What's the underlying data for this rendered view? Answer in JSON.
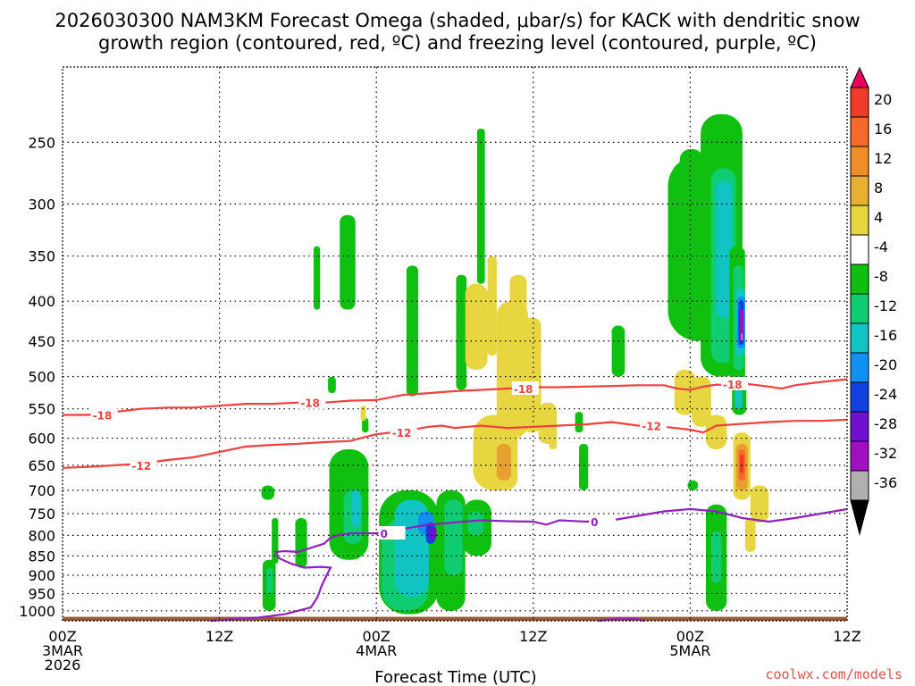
{
  "title_line1": "2026030300 NAM3KM Forecast Omega (shaded, μbar/s) for KACK with dendritic snow",
  "title_line2": "growth region (contoured, red, ºC) and freezing level (contoured, purple, ºC)",
  "credit": "coolwx.com/models",
  "chart_data": {
    "type": "heatmap",
    "title": "2026030300 NAM3KM Forecast Omega (shaded, μbar/s) for KACK with dendritic snow growth region (contoured, red, ºC) and freezing level (contoured, purple, ºC)",
    "xlabel": "Forecast Time (UTC)",
    "ylabel": "",
    "x_ticks": [
      {
        "hour": 0,
        "lines": [
          "00Z",
          "3MAR",
          "2026"
        ]
      },
      {
        "hour": 12,
        "lines": [
          "12Z"
        ]
      },
      {
        "hour": 24,
        "lines": [
          "00Z",
          "4MAR"
        ]
      },
      {
        "hour": 36,
        "lines": [
          "12Z"
        ]
      },
      {
        "hour": 48,
        "lines": [
          "00Z",
          "5MAR"
        ]
      },
      {
        "hour": 60,
        "lines": [
          "12Z"
        ]
      }
    ],
    "xlim": [
      0,
      60
    ],
    "y_ticks": [
      250,
      300,
      350,
      400,
      450,
      500,
      550,
      600,
      650,
      700,
      750,
      800,
      850,
      900,
      950,
      1000
    ],
    "ylim": [
      1030,
      200
    ],
    "grid": true,
    "colorbar": {
      "labels": [
        "20",
        "16",
        "12",
        "8",
        "4",
        "-4",
        "-8",
        "-12",
        "-16",
        "-20",
        "-24",
        "-28",
        "-32",
        "-36"
      ],
      "colors": [
        "#e8005f",
        "#f03a2a",
        "#f56a2a",
        "#ef8f2a",
        "#e8b030",
        "#e8d640",
        "#ffffff",
        "#10c010",
        "#10cc70",
        "#10c4c4",
        "#1090f0",
        "#1040e0",
        "#7010d0",
        "#a010c0",
        "#b0b0b0",
        "#000000"
      ]
    },
    "omega_cells": [
      {
        "t0": 15.2,
        "t1": 16.2,
        "p0": 690,
        "p1": 720,
        "v": -6
      },
      {
        "t0": 15.3,
        "t1": 16.3,
        "p0": 1000,
        "p1": 860,
        "v": -6
      },
      {
        "t0": 15.6,
        "t1": 16.1,
        "p0": 950,
        "p1": 880,
        "v": -10
      },
      {
        "t0": 16.0,
        "t1": 16.5,
        "p0": 870,
        "p1": 760,
        "v": -6
      },
      {
        "t0": 17.8,
        "t1": 18.7,
        "p0": 880,
        "p1": 760,
        "v": -6
      },
      {
        "t0": 19.2,
        "t1": 19.7,
        "p0": 410,
        "p1": 340,
        "v": -6
      },
      {
        "t0": 20.3,
        "t1": 20.9,
        "p0": 525,
        "p1": 500,
        "v": -6
      },
      {
        "t0": 21.2,
        "t1": 22.4,
        "p0": 410,
        "p1": 310,
        "v": -6
      },
      {
        "t0": 20.4,
        "t1": 23.4,
        "p0": 860,
        "p1": 620,
        "v": -6
      },
      {
        "t0": 21.5,
        "t1": 22.9,
        "p0": 820,
        "p1": 700,
        "v": -10
      },
      {
        "t0": 22.1,
        "t1": 22.8,
        "p0": 780,
        "p1": 700,
        "v": -14
      },
      {
        "t0": 22.9,
        "t1": 23.4,
        "p0": 590,
        "p1": 565,
        "v": -6
      },
      {
        "t0": 22.8,
        "t1": 23.2,
        "p0": 570,
        "p1": 545,
        "v": 5
      },
      {
        "t0": 24.2,
        "t1": 28.8,
        "p0": 1010,
        "p1": 700,
        "v": -6
      },
      {
        "t0": 24.4,
        "t1": 28.0,
        "p0": 1000,
        "p1": 760,
        "v": -10
      },
      {
        "t0": 25.4,
        "t1": 28.0,
        "p0": 960,
        "p1": 720,
        "v": -14
      },
      {
        "t0": 27.2,
        "t1": 28.4,
        "p0": 800,
        "p1": 745,
        "v": -18
      },
      {
        "t0": 27.8,
        "t1": 28.5,
        "p0": 820,
        "p1": 770,
        "v": -22
      },
      {
        "t0": 28.0,
        "t1": 28.6,
        "p0": 810,
        "p1": 780,
        "v": -26
      },
      {
        "t0": 28.6,
        "t1": 30.8,
        "p0": 1000,
        "p1": 700,
        "v": -6
      },
      {
        "t0": 29.2,
        "t1": 30.6,
        "p0": 900,
        "p1": 720,
        "v": -10
      },
      {
        "t0": 30.6,
        "t1": 32.8,
        "p0": 850,
        "p1": 720,
        "v": -6
      },
      {
        "t0": 31.0,
        "t1": 32.2,
        "p0": 800,
        "p1": 745,
        "v": -10
      },
      {
        "t0": 26.3,
        "t1": 27.2,
        "p0": 530,
        "p1": 360,
        "v": -6
      },
      {
        "t0": 30.1,
        "t1": 30.9,
        "p0": 520,
        "p1": 370,
        "v": -6
      },
      {
        "t0": 31.7,
        "t1": 32.3,
        "p0": 380,
        "p1": 240,
        "v": -6
      },
      {
        "t0": 30.8,
        "t1": 32.5,
        "p0": 490,
        "p1": 380,
        "v": 5
      },
      {
        "t0": 31.4,
        "t1": 34.8,
        "p0": 700,
        "p1": 560,
        "v": 5
      },
      {
        "t0": 32.5,
        "t1": 33.2,
        "p0": 470,
        "p1": 350,
        "v": 5
      },
      {
        "t0": 33.2,
        "t1": 35.6,
        "p0": 600,
        "p1": 400,
        "v": 5
      },
      {
        "t0": 34.2,
        "t1": 35.5,
        "p0": 530,
        "p1": 370,
        "v": 5
      },
      {
        "t0": 35.2,
        "t1": 36.6,
        "p0": 590,
        "p1": 420,
        "v": 5
      },
      {
        "t0": 36.4,
        "t1": 37.8,
        "p0": 610,
        "p1": 540,
        "v": 5
      },
      {
        "t0": 37.2,
        "t1": 37.8,
        "p0": 620,
        "p1": 555,
        "v": 5
      },
      {
        "t0": 32.8,
        "t1": 34.8,
        "p0": 700,
        "p1": 585,
        "v": 5
      },
      {
        "t0": 33.2,
        "t1": 34.3,
        "p0": 680,
        "p1": 610,
        "v": 9
      },
      {
        "t0": 39.2,
        "t1": 39.8,
        "p0": 590,
        "p1": 555,
        "v": -6
      },
      {
        "t0": 39.5,
        "t1": 40.2,
        "p0": 700,
        "p1": 610,
        "v": -6
      },
      {
        "t0": 42.0,
        "t1": 43.0,
        "p0": 500,
        "p1": 430,
        "v": -6
      },
      {
        "t0": 46.3,
        "t1": 51.4,
        "p0": 450,
        "p1": 260,
        "v": -6
      },
      {
        "t0": 47.2,
        "t1": 49.0,
        "p0": 420,
        "p1": 255,
        "v": -6
      },
      {
        "t0": 48.8,
        "t1": 52.0,
        "p0": 500,
        "p1": 230,
        "v": -6
      },
      {
        "t0": 49.6,
        "t1": 51.5,
        "p0": 480,
        "p1": 270,
        "v": -10
      },
      {
        "t0": 50.0,
        "t1": 51.2,
        "p0": 420,
        "p1": 280,
        "v": -14
      },
      {
        "t0": 51.0,
        "t1": 52.2,
        "p0": 520,
        "p1": 340,
        "v": -6
      },
      {
        "t0": 51.3,
        "t1": 52.1,
        "p0": 490,
        "p1": 360,
        "v": -10
      },
      {
        "t0": 51.5,
        "t1": 52.2,
        "p0": 470,
        "p1": 385,
        "v": -14
      },
      {
        "t0": 51.6,
        "t1": 52.2,
        "p0": 460,
        "p1": 395,
        "v": -18
      },
      {
        "t0": 51.7,
        "t1": 52.1,
        "p0": 455,
        "p1": 400,
        "v": -22
      },
      {
        "t0": 51.8,
        "t1": 52.1,
        "p0": 450,
        "p1": 410,
        "v": -28
      },
      {
        "t0": 51.9,
        "t1": 52.0,
        "p0": 450,
        "p1": 440,
        "v": -36
      },
      {
        "t0": 51.2,
        "t1": 52.3,
        "p0": 560,
        "p1": 510,
        "v": -6
      },
      {
        "t0": 51.4,
        "t1": 52.0,
        "p0": 550,
        "p1": 520,
        "v": -14
      },
      {
        "t0": 46.8,
        "t1": 48.4,
        "p0": 560,
        "p1": 490,
        "v": 5
      },
      {
        "t0": 48.1,
        "t1": 49.6,
        "p0": 580,
        "p1": 500,
        "v": 5
      },
      {
        "t0": 49.2,
        "t1": 50.8,
        "p0": 620,
        "p1": 560,
        "v": 5
      },
      {
        "t0": 51.3,
        "t1": 52.6,
        "p0": 720,
        "p1": 590,
        "v": 5
      },
      {
        "t0": 51.5,
        "t1": 52.4,
        "p0": 700,
        "p1": 610,
        "v": 9
      },
      {
        "t0": 51.7,
        "t1": 52.2,
        "p0": 680,
        "p1": 620,
        "v": 13
      },
      {
        "t0": 51.8,
        "t1": 52.1,
        "p0": 665,
        "p1": 630,
        "v": 17
      },
      {
        "t0": 52.6,
        "t1": 54.0,
        "p0": 770,
        "p1": 690,
        "v": 5
      },
      {
        "t0": 52.2,
        "t1": 53.0,
        "p0": 840,
        "p1": 760,
        "v": 5
      },
      {
        "t0": 47.8,
        "t1": 48.6,
        "p0": 700,
        "p1": 680,
        "v": -6
      },
      {
        "t0": 49.2,
        "t1": 50.8,
        "p0": 1000,
        "p1": 730,
        "v": -6
      },
      {
        "t0": 49.6,
        "t1": 50.4,
        "p0": 920,
        "p1": 790,
        "v": -10
      }
    ],
    "contours": [
      {
        "name": "-18",
        "color": "#f04040",
        "points": [
          [
            0,
            560
          ],
          [
            2,
            560
          ],
          [
            4,
            555
          ],
          [
            6,
            550
          ],
          [
            8,
            548
          ],
          [
            10,
            548
          ],
          [
            12,
            545
          ],
          [
            14,
            542
          ],
          [
            16,
            542
          ],
          [
            18,
            540
          ],
          [
            20,
            540
          ],
          [
            22,
            537
          ],
          [
            24,
            536
          ],
          [
            26,
            528
          ],
          [
            28,
            525
          ],
          [
            30,
            522
          ],
          [
            32,
            520
          ],
          [
            34,
            518
          ],
          [
            36,
            516
          ],
          [
            38,
            516
          ],
          [
            40,
            515
          ],
          [
            42,
            514
          ],
          [
            44,
            513
          ],
          [
            46,
            513
          ],
          [
            47,
            518
          ],
          [
            48,
            520
          ],
          [
            49,
            515
          ],
          [
            50,
            512
          ],
          [
            51,
            513
          ],
          [
            52,
            510
          ],
          [
            54,
            515
          ],
          [
            55,
            518
          ],
          [
            56,
            513
          ],
          [
            58,
            508
          ],
          [
            60,
            504
          ]
        ],
        "labels": [
          [
            2.3,
            560
          ],
          [
            18.2,
            540
          ],
          [
            34.5,
            518
          ],
          [
            50.5,
            511
          ]
        ]
      },
      {
        "name": "-12",
        "color": "#f04040",
        "points": [
          [
            0,
            655
          ],
          [
            2,
            653
          ],
          [
            4,
            650
          ],
          [
            6,
            647
          ],
          [
            8,
            640
          ],
          [
            10,
            635
          ],
          [
            12,
            625
          ],
          [
            14,
            615
          ],
          [
            16,
            612
          ],
          [
            18,
            610
          ],
          [
            20,
            607
          ],
          [
            22,
            605
          ],
          [
            24,
            593
          ],
          [
            26,
            588
          ],
          [
            28,
            580
          ],
          [
            29,
            578
          ],
          [
            30,
            582
          ],
          [
            31,
            580
          ],
          [
            32,
            578
          ],
          [
            34,
            582
          ],
          [
            36,
            580
          ],
          [
            38,
            578
          ],
          [
            40,
            576
          ],
          [
            42,
            572
          ],
          [
            44,
            578
          ],
          [
            46,
            580
          ],
          [
            48,
            585
          ],
          [
            49,
            590
          ],
          [
            50,
            578
          ],
          [
            52,
            575
          ],
          [
            54,
            572
          ],
          [
            56,
            570
          ],
          [
            58,
            570
          ],
          [
            60,
            568
          ]
        ],
        "labels": [
          [
            5.3,
            650
          ],
          [
            25.2,
            590
          ],
          [
            44.3,
            578
          ]
        ]
      },
      {
        "name": "0",
        "color": "#9020c0",
        "points": [
          [
            11.3,
            1030
          ],
          [
            13,
            1025
          ],
          [
            15,
            1020
          ],
          [
            17,
            1010
          ],
          [
            18,
            1000
          ],
          [
            19,
            990
          ],
          [
            19.5,
            960
          ],
          [
            19.8,
            930
          ],
          [
            20.2,
            900
          ],
          [
            20.5,
            880
          ],
          [
            19.8,
            878
          ],
          [
            18.5,
            880
          ],
          [
            17.5,
            870
          ],
          [
            16.5,
            855
          ],
          [
            16.3,
            840
          ],
          [
            17,
            838
          ],
          [
            18,
            840
          ],
          [
            19,
            830
          ],
          [
            20,
            820
          ],
          [
            20.5,
            805
          ],
          [
            21,
            800
          ],
          [
            22,
            795
          ],
          [
            24,
            795
          ],
          [
            26,
            785
          ],
          [
            28,
            775
          ],
          [
            30,
            770
          ],
          [
            32,
            765
          ],
          [
            34,
            767
          ],
          [
            36,
            768
          ],
          [
            37,
            775
          ],
          [
            38,
            765
          ],
          [
            40,
            768
          ],
          [
            42,
            765
          ],
          [
            44,
            755
          ],
          [
            46,
            745
          ],
          [
            48,
            740
          ],
          [
            50,
            745
          ],
          [
            52,
            760
          ],
          [
            54,
            768
          ],
          [
            56,
            760
          ],
          [
            58,
            750
          ],
          [
            59,
            745
          ],
          [
            60,
            740
          ]
        ],
        "labels": [
          [
            24.3,
            795
          ],
          [
            40.4,
            768
          ]
        ]
      },
      {
        "name": "0-small",
        "color": "#9020c0",
        "points": [
          [
            41.0,
            1030
          ],
          [
            42,
            1025
          ],
          [
            44,
            1025
          ],
          [
            44.5,
            1030
          ]
        ],
        "labels": []
      }
    ]
  }
}
